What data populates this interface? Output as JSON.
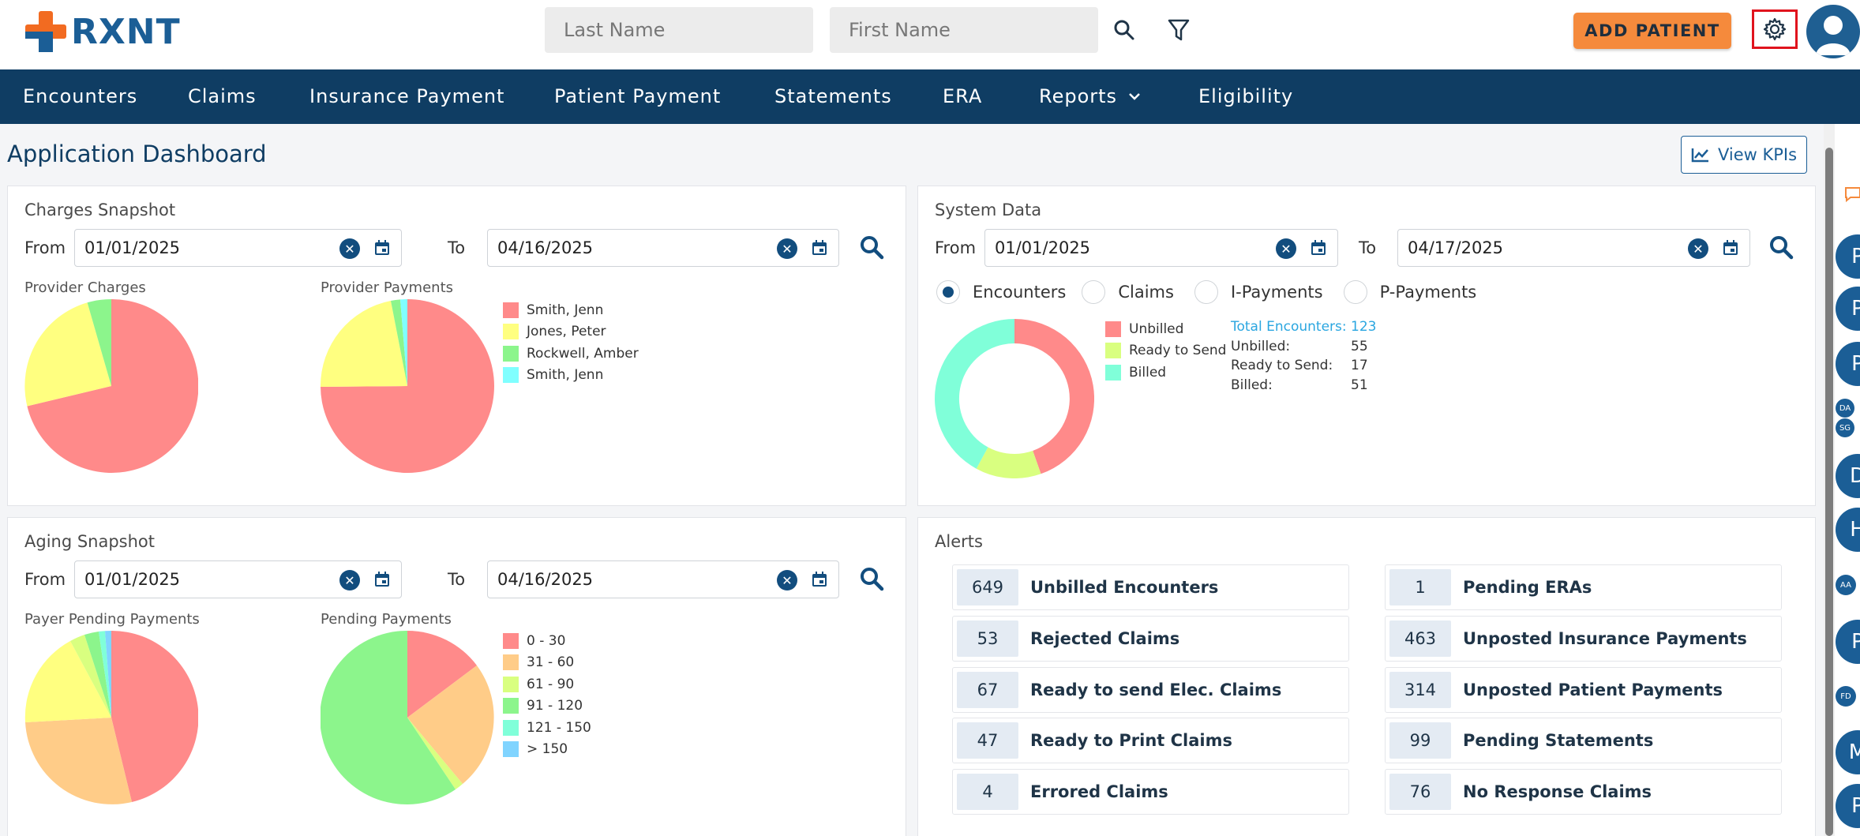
{
  "app": {
    "logo_text": "RXNT"
  },
  "search": {
    "last_name_placeholder": "Last Name",
    "first_name_placeholder": "First Name"
  },
  "toolbar": {
    "add_patient_label": "ADD PATIENT"
  },
  "nav": {
    "items": [
      "Encounters",
      "Claims",
      "Insurance Payment",
      "Patient Payment",
      "Statements",
      "ERA",
      "Reports",
      "Eligibility"
    ]
  },
  "page": {
    "title": "Application Dashboard",
    "kpi_label": "View KPIs"
  },
  "charges": {
    "title": "Charges Snapshot",
    "from_label": "From",
    "to_label": "To",
    "from": "01/01/2025",
    "to": "04/16/2025",
    "provider_charges_label": "Provider Charges",
    "provider_payments_label": "Provider Payments",
    "legend": [
      "Smith, Jenn",
      "Jones, Peter",
      "Rockwell, Amber",
      "Smith, Jenn"
    ]
  },
  "system": {
    "title": "System Data",
    "from_label": "From",
    "to_label": "To",
    "from": "01/01/2025",
    "to": "04/17/2025",
    "radios": [
      "Encounters",
      "Claims",
      "I-Payments",
      "P-Payments"
    ],
    "legend": [
      "Unbilled",
      "Ready to Send",
      "Billed"
    ],
    "stats": {
      "total_label": "Total Encounters:",
      "total": "123",
      "unbilled_label": "Unbilled:",
      "unbilled": "55",
      "ready_label": "Ready to Send:",
      "ready": "17",
      "billed_label": "Billed:",
      "billed": "51"
    }
  },
  "aging": {
    "title": "Aging Snapshot",
    "from_label": "From",
    "to_label": "To",
    "from": "01/01/2025",
    "to": "04/16/2025",
    "payer_label": "Payer Pending Payments",
    "pending_label": "Pending Payments",
    "legend": [
      "0 - 30",
      "31 - 60",
      "61 - 90",
      "91 - 120",
      "121 - 150",
      "> 150"
    ]
  },
  "alerts": {
    "title": "Alerts",
    "left": [
      {
        "num": "649",
        "label": "Unbilled Encounters"
      },
      {
        "num": "53",
        "label": "Rejected Claims"
      },
      {
        "num": "67",
        "label": "Ready to send Elec. Claims"
      },
      {
        "num": "47",
        "label": "Ready to Print Claims"
      },
      {
        "num": "4",
        "label": "Errored Claims"
      }
    ],
    "right": [
      {
        "num": "1",
        "label": "Pending ERAs"
      },
      {
        "num": "463",
        "label": "Unposted Insurance Payments"
      },
      {
        "num": "314",
        "label": "Unposted Patient Payments"
      },
      {
        "num": "99",
        "label": "Pending Statements"
      },
      {
        "num": "76",
        "label": "No Response Claims"
      }
    ]
  },
  "rail": {
    "items": [
      "P",
      "P",
      "P",
      "DA",
      "SG",
      "D",
      "H",
      "AA",
      "P",
      "FD",
      "M",
      "P"
    ]
  },
  "colors": {
    "nav": "#0f3d63",
    "accent": "#f58a3c",
    "brand": "#1b5e96",
    "red": "#ff8a8a",
    "yellow": "#ffff80",
    "green": "#8cf58c",
    "cyan": "#80ffff",
    "orange": "#ffcc88",
    "lime": "#d9ff80",
    "teal": "#80ffd9",
    "sky": "#80d4ff"
  }
}
